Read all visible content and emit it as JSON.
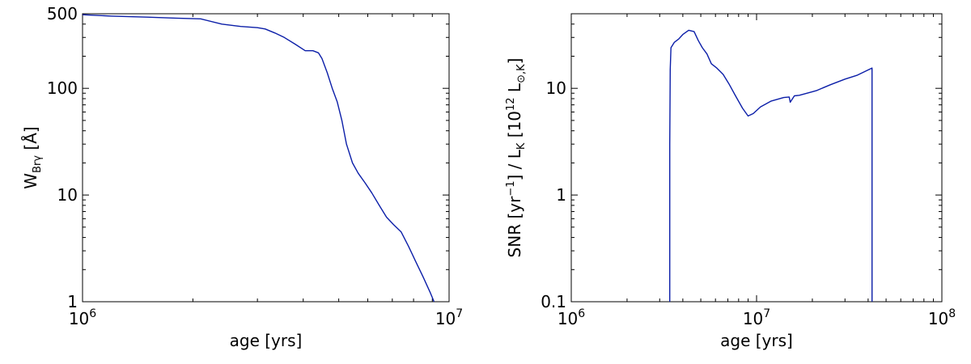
{
  "chart_data": [
    {
      "type": "line",
      "xscale": "log",
      "yscale": "log",
      "xlim": [
        1000000,
        10000000
      ],
      "ylim": [
        1,
        500
      ],
      "xlabel": "age [yrs]",
      "ylabel": "W_Brγ [Å]",
      "ylabel_parts": {
        "main": "W",
        "sub": "Brγ",
        "rest": " [Å]"
      },
      "xticks": [
        {
          "value": 1000000,
          "base": "10",
          "exp": "6"
        },
        {
          "value": 10000000,
          "base": "10",
          "exp": "7"
        }
      ],
      "yticks": [
        {
          "value": 1,
          "label": "1"
        },
        {
          "value": 10,
          "label": "10"
        },
        {
          "value": 100,
          "label": "100"
        },
        {
          "value": 500,
          "label": "500"
        }
      ],
      "grid": false,
      "series": [
        {
          "color": "#0b1ea8",
          "x": [
            1000000,
            1200000,
            1500000,
            1800000,
            2100000,
            2400000,
            2700000,
            3000000,
            3150000,
            3350000,
            3550000,
            3800000,
            4050000,
            4250000,
            4400000,
            4500000,
            4650000,
            4800000,
            4950000,
            5100000,
            5250000,
            5450000,
            5650000,
            5900000,
            6150000,
            6450000,
            6750000,
            7050000,
            7400000,
            7750000,
            8100000,
            8500000,
            8900000,
            9100000
          ],
          "y": [
            490,
            475,
            465,
            455,
            448,
            400,
            380,
            370,
            360,
            330,
            300,
            260,
            225,
            225,
            215,
            190,
            140,
            100,
            75,
            50,
            30,
            20,
            16,
            13,
            10.5,
            8,
            6.2,
            5.3,
            4.5,
            3.3,
            2.4,
            1.7,
            1.2,
            1.0
          ]
        }
      ]
    },
    {
      "type": "line",
      "xscale": "log",
      "yscale": "log",
      "xlim": [
        1000000,
        100000000
      ],
      "ylim": [
        0.1,
        50
      ],
      "xlabel": "age [yrs]",
      "ylabel": "SNR [yr⁻¹] / L_K [10¹² L_⊙,K]",
      "ylabel_parts": {
        "a": "SNR [yr",
        "a_sup": "−1",
        "b": "] / L",
        "b_sub": "K",
        "c": "  [10",
        "c_sup": "12",
        "d": " L",
        "d_sub": "⊙,K",
        "e": "]"
      },
      "xticks": [
        {
          "value": 1000000,
          "base": "10",
          "exp": "6"
        },
        {
          "value": 10000000,
          "base": "10",
          "exp": "7"
        },
        {
          "value": 100000000,
          "base": "10",
          "exp": "8"
        }
      ],
      "yticks": [
        {
          "value": 0.1,
          "label": "0.1"
        },
        {
          "value": 1,
          "label": "1"
        },
        {
          "value": 10,
          "label": "10"
        }
      ],
      "grid": false,
      "series": [
        {
          "color": "#0b1ea8",
          "x": [
            3400000,
            3400000,
            3420000,
            3450000,
            3500000,
            3600000,
            3800000,
            4000000,
            4300000,
            4600000,
            4850000,
            5100000,
            5400000,
            5700000,
            6100000,
            6600000,
            7100000,
            7700000,
            8400000,
            9000000,
            9600000,
            10500000,
            12000000,
            14000000,
            15000000,
            15200000,
            16000000,
            17000000,
            20000000,
            21000000,
            25000000,
            30000000,
            35000000,
            42000000,
            42000000,
            42000000
          ],
          "y": [
            0.1,
            3,
            15,
            24,
            25,
            27,
            29,
            32,
            35,
            34,
            28,
            24,
            21,
            17,
            15.5,
            13.5,
            11,
            8.5,
            6.5,
            5.5,
            5.8,
            6.7,
            7.6,
            8.2,
            8.3,
            7.4,
            8.5,
            8.6,
            9.3,
            9.5,
            10.8,
            12.2,
            13.3,
            15.5,
            10,
            0.1
          ]
        }
      ]
    }
  ]
}
